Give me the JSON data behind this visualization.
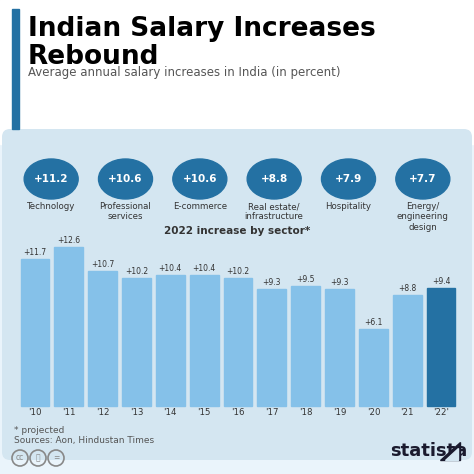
{
  "title_line1": "Indian Salary Increases",
  "title_line2": "Rebound",
  "subtitle": "Average annual salary increases in India (in percent)",
  "bar_years": [
    "'10",
    "'11",
    "'12",
    "'13",
    "'14",
    "'15",
    "'16",
    "'17",
    "'18",
    "'19",
    "'20",
    "'21",
    "'22'"
  ],
  "bar_values": [
    11.7,
    12.6,
    10.7,
    10.2,
    10.4,
    10.4,
    10.2,
    9.3,
    9.5,
    9.3,
    6.1,
    8.8,
    9.4
  ],
  "bar_labels": [
    "+11.7",
    "+12.6",
    "+10.7",
    "+10.2",
    "+10.4",
    "+10.4",
    "+10.2",
    "+9.3",
    "+9.5",
    "+9.3",
    "+6.1",
    "+8.8",
    "+9.4"
  ],
  "bar_color": "#85c1e9",
  "bar_color_last": "#2471a3",
  "sector_labels": [
    "Technology",
    "Professional\nservices",
    "E-commerce",
    "Real estate/\ninfrastructure",
    "Hospitality",
    "Energy/\nengineering\ndesign"
  ],
  "sector_values": [
    "+11.2",
    "+10.6",
    "+10.6",
    "+8.8",
    "+7.9",
    "+7.7"
  ],
  "sector_bubble_color": "#2471a3",
  "sector_bg_color": "#d4e6f1",
  "footer_note1": "* projected",
  "footer_note2": "Sources: Aon, Hindustan Times",
  "sector_title": "2022 increase by sector*",
  "bg_color": "#eaf4fb",
  "title_bg_color": "#ffffff",
  "title_bar_color": "#2471a3",
  "bar_chart_bg": "#d4e6f1"
}
